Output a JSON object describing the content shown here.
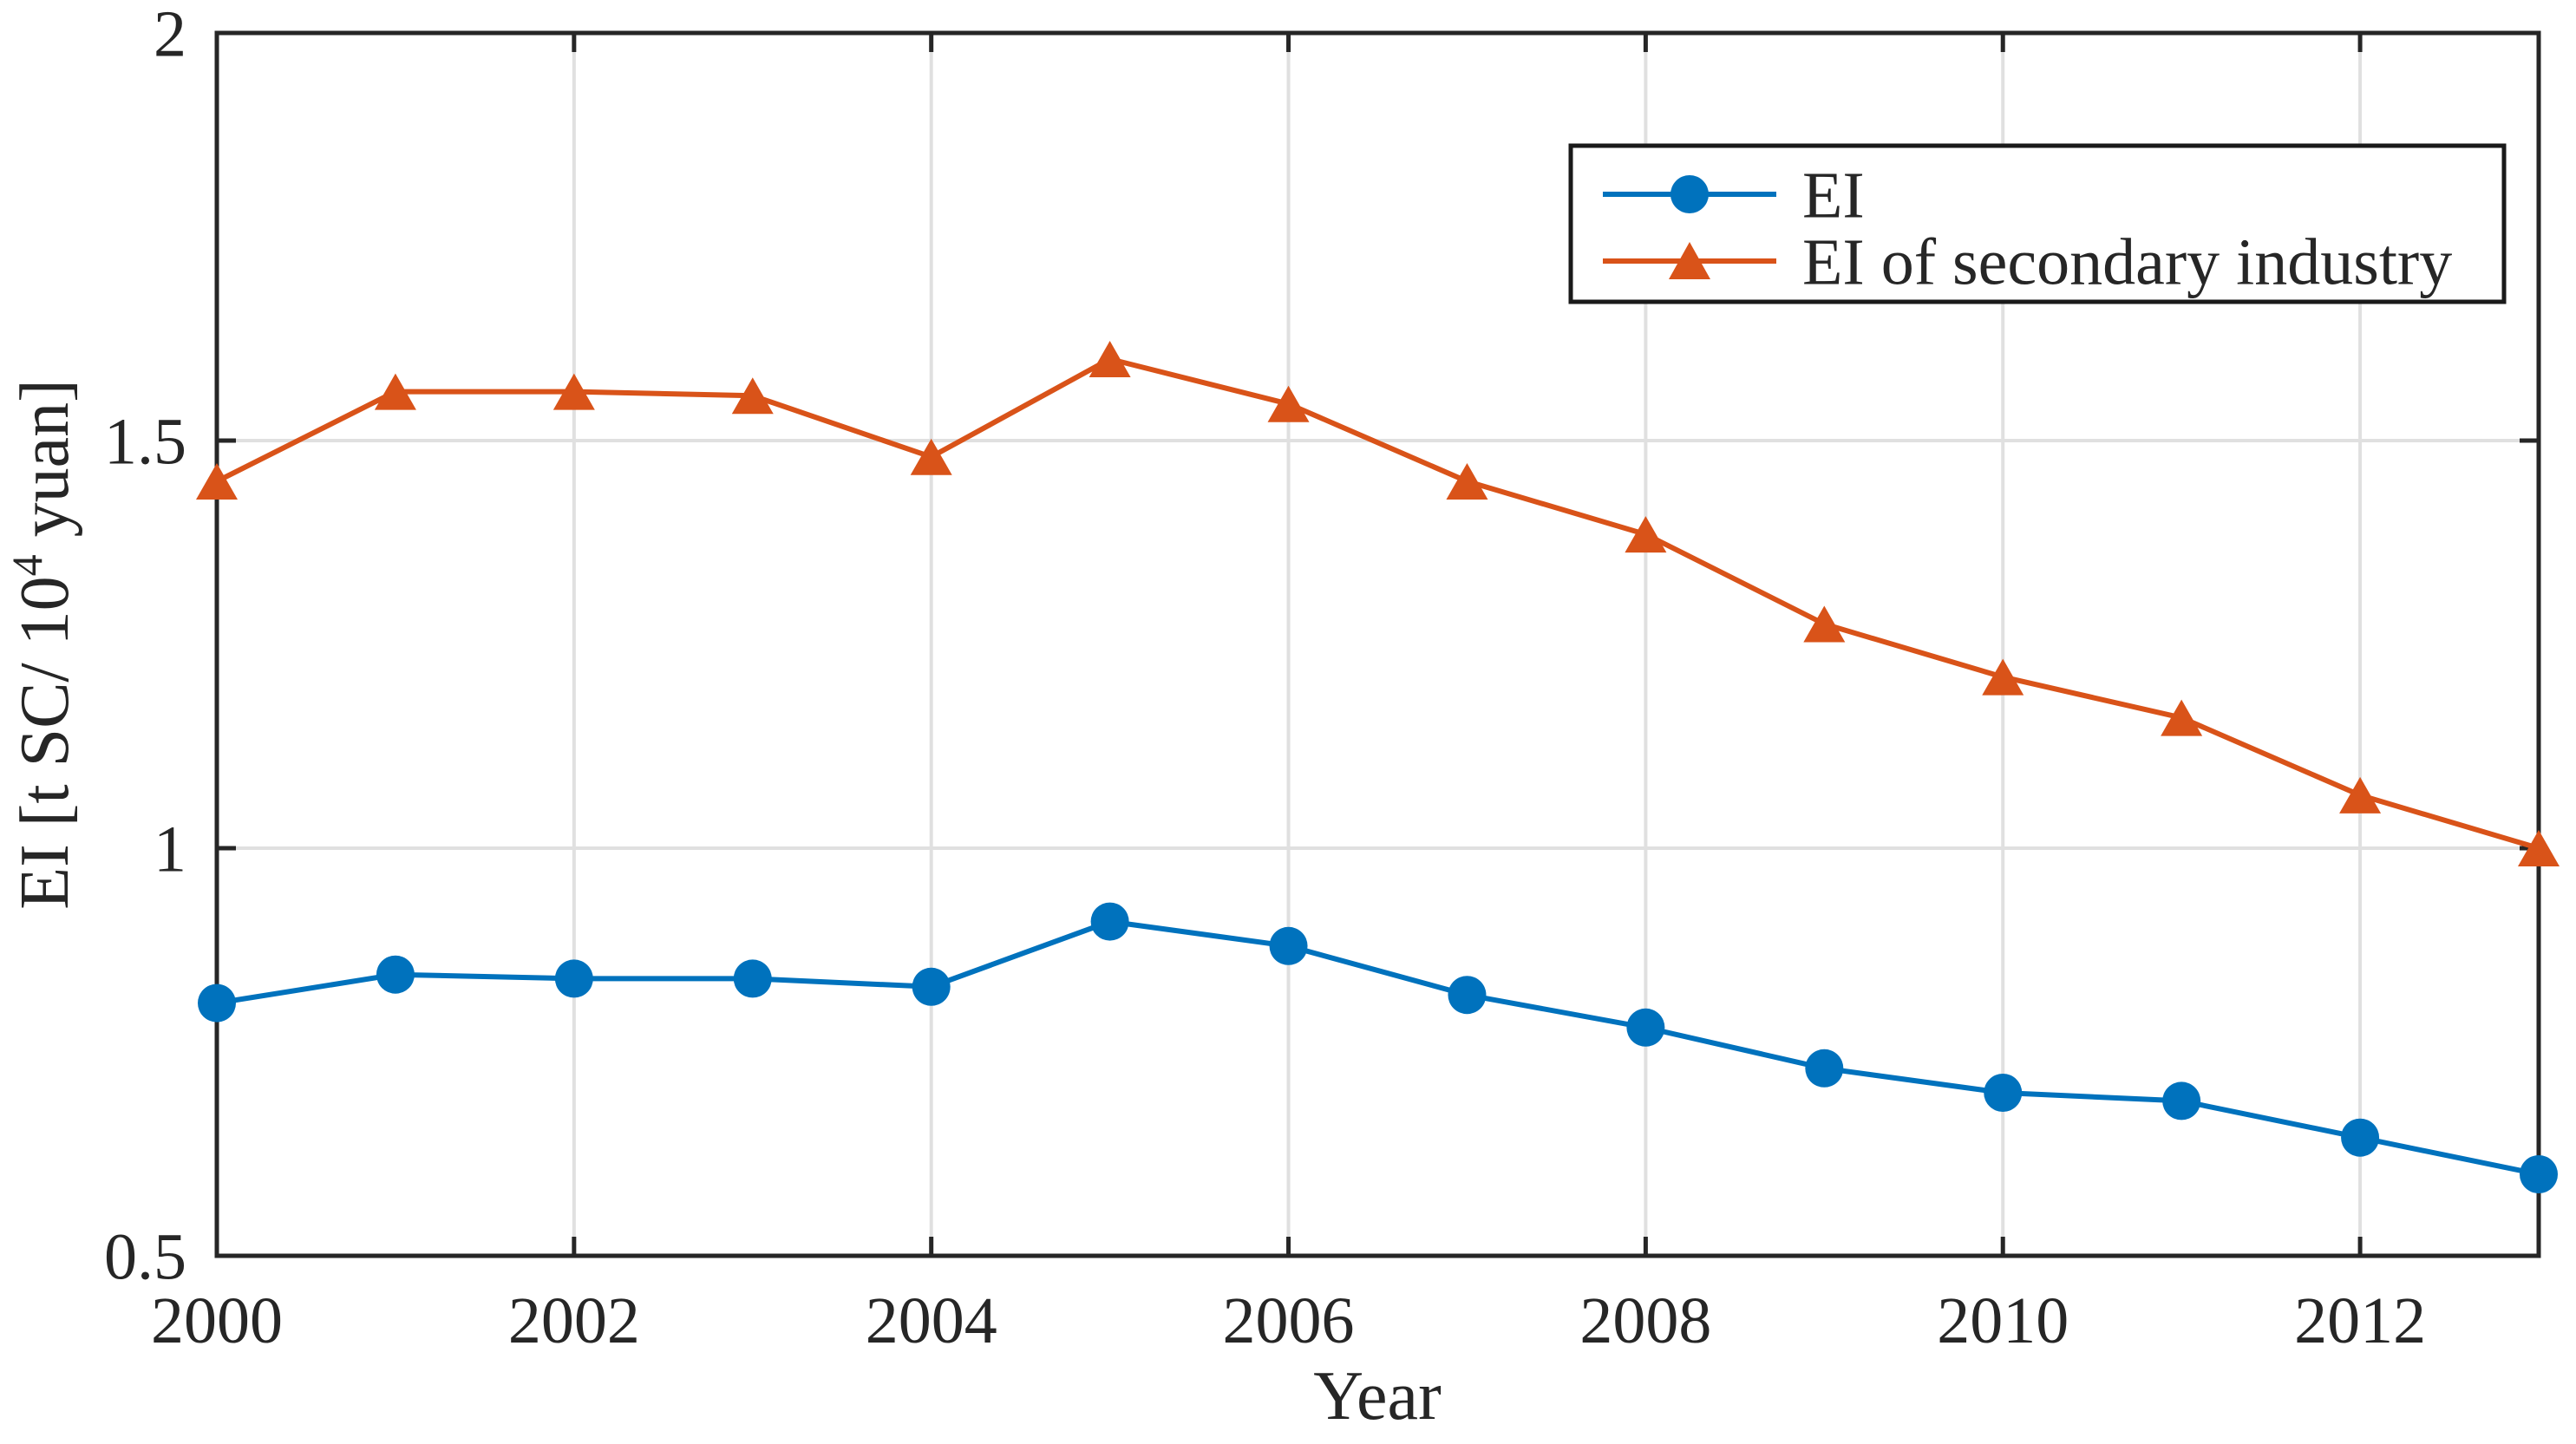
{
  "figure": {
    "background_color": "#ffffff",
    "axis_color": "#262626",
    "grid_color": "#e0e0e0",
    "text_color": "#262626",
    "ylabel_parts": {
      "pre": "EI [t SC/ 10",
      "sup": "4",
      "post": " yuan]"
    }
  },
  "chart_data": {
    "type": "line",
    "title": "",
    "xlabel": "Year",
    "ylabel": "EI [t SC/ 10^4 yuan]",
    "x": [
      2000,
      2001,
      2002,
      2003,
      2004,
      2005,
      2006,
      2007,
      2008,
      2009,
      2010,
      2011,
      2012,
      2013
    ],
    "series": [
      {
        "name": "EI",
        "marker": "circle",
        "color": "#0072BD",
        "values": [
          0.81,
          0.845,
          0.84,
          0.84,
          0.83,
          0.91,
          0.88,
          0.82,
          0.78,
          0.73,
          0.7,
          0.69,
          0.645,
          0.6
        ]
      },
      {
        "name": "EI of secondary industry",
        "marker": "triangle",
        "color": "#D95319",
        "values": [
          1.45,
          1.56,
          1.56,
          1.555,
          1.48,
          1.6,
          1.545,
          1.45,
          1.385,
          1.275,
          1.21,
          1.16,
          1.065,
          1.0
        ]
      }
    ],
    "xlim": [
      2000,
      2013
    ],
    "ylim": [
      0.5,
      2
    ],
    "xticks": [
      2000,
      2002,
      2004,
      2006,
      2008,
      2010,
      2012
    ],
    "xtick_labels": [
      "2000",
      "2002",
      "2004",
      "2006",
      "2008",
      "2010",
      "2012"
    ],
    "yticks": [
      0.5,
      1,
      1.5,
      2
    ],
    "ytick_labels": [
      "0.5",
      "1",
      "1.5",
      "2"
    ],
    "grid": true,
    "legend_position": "top-right",
    "legend_entries": [
      "EI",
      "EI of secondary industry"
    ]
  }
}
